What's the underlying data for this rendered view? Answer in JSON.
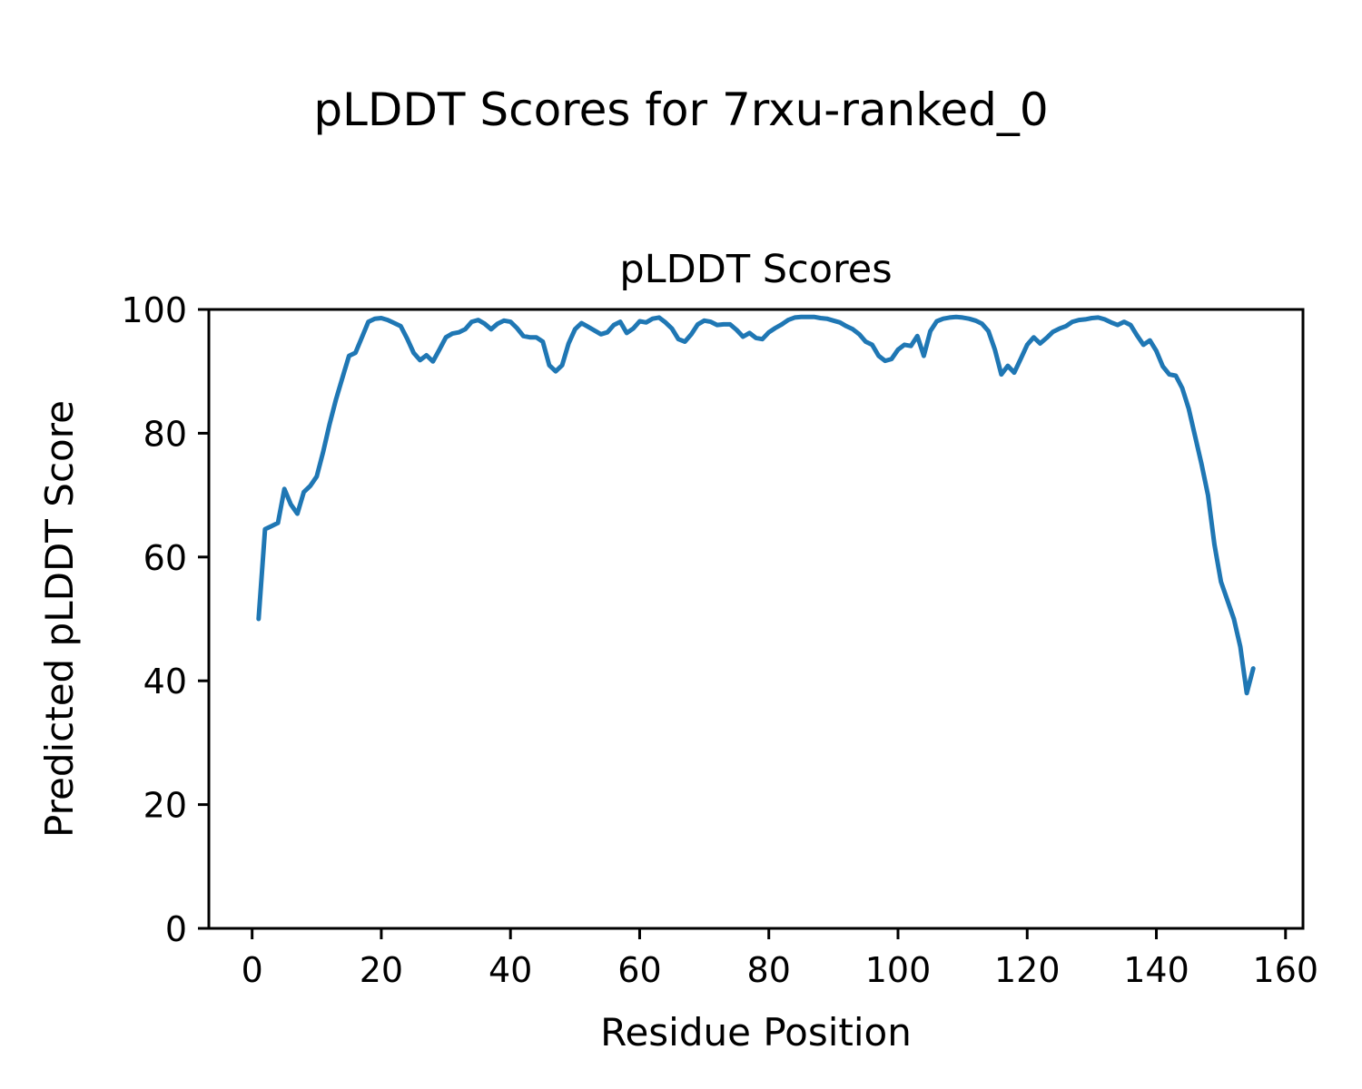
{
  "figure": {
    "suptitle": "pLDDT Scores for 7rxu-ranked_0",
    "background": "#ffffff"
  },
  "chart_data": {
    "type": "line",
    "title": "pLDDT Scores",
    "xlabel": "Residue Position",
    "ylabel": "Predicted pLDDT Score",
    "line_color": "#1f77b4",
    "line_width": 5,
    "grid": false,
    "legend": null,
    "xlim": [
      -6.7,
      162.7
    ],
    "ylim": [
      0,
      100
    ],
    "xticks": [
      0,
      20,
      40,
      60,
      80,
      100,
      120,
      140,
      160
    ],
    "yticks": [
      0,
      20,
      40,
      60,
      80,
      100
    ],
    "x": [
      1,
      2,
      3,
      4,
      5,
      6,
      7,
      8,
      9,
      10,
      11,
      12,
      13,
      14,
      15,
      16,
      17,
      18,
      19,
      20,
      21,
      22,
      23,
      24,
      25,
      26,
      27,
      28,
      29,
      30,
      31,
      32,
      33,
      34,
      35,
      36,
      37,
      38,
      39,
      40,
      41,
      42,
      43,
      44,
      45,
      46,
      47,
      48,
      49,
      50,
      51,
      52,
      53,
      54,
      55,
      56,
      57,
      58,
      59,
      60,
      61,
      62,
      63,
      64,
      65,
      66,
      67,
      68,
      69,
      70,
      71,
      72,
      73,
      74,
      75,
      76,
      77,
      78,
      79,
      80,
      81,
      82,
      83,
      84,
      85,
      86,
      87,
      88,
      89,
      90,
      91,
      92,
      93,
      94,
      95,
      96,
      97,
      98,
      99,
      100,
      101,
      102,
      103,
      104,
      105,
      106,
      107,
      108,
      109,
      110,
      111,
      112,
      113,
      114,
      115,
      116,
      117,
      118,
      119,
      120,
      121,
      122,
      123,
      124,
      125,
      126,
      127,
      128,
      129,
      130,
      131,
      132,
      133,
      134,
      135,
      136,
      137,
      138,
      139,
      140,
      141,
      142,
      143,
      144,
      145,
      146,
      147,
      148,
      149,
      150,
      151,
      152,
      153,
      154,
      155
    ],
    "y": [
      50,
      64.5,
      65,
      65.5,
      71,
      68.5,
      67,
      70.5,
      71.5,
      73,
      77,
      81.5,
      85.5,
      89,
      92.5,
      93,
      95.5,
      98,
      98.5,
      98.6,
      98.3,
      97.8,
      97.3,
      95.3,
      93,
      91.8,
      92.6,
      91.6,
      93.5,
      95.5,
      96.1,
      96.3,
      96.8,
      98,
      98.3,
      97.7,
      96.8,
      97.7,
      98.2,
      98,
      97,
      95.7,
      95.5,
      95.5,
      94.8,
      91,
      90,
      91,
      94.5,
      96.8,
      97.8,
      97.2,
      96.6,
      96,
      96.3,
      97.5,
      98,
      96.2,
      96.9,
      98.1,
      97.9,
      98.5,
      98.7,
      97.9,
      96.9,
      95.2,
      94.8,
      96,
      97.6,
      98.2,
      98,
      97.5,
      97.6,
      97.6,
      96.7,
      95.6,
      96.2,
      95.4,
      95.2,
      96.3,
      97,
      97.6,
      98.3,
      98.7,
      98.8,
      98.8,
      98.8,
      98.6,
      98.5,
      98.2,
      97.9,
      97.3,
      96.8,
      96,
      94.8,
      94.3,
      92.5,
      91.7,
      92,
      93.5,
      94.3,
      94.1,
      95.7,
      92.5,
      96.5,
      98.1,
      98.5,
      98.7,
      98.8,
      98.7,
      98.5,
      98.2,
      97.7,
      96.5,
      93.5,
      89.5,
      90.9,
      89.8,
      92,
      94.3,
      95.5,
      94.5,
      95.4,
      96.4,
      96.9,
      97.3,
      98,
      98.3,
      98.4,
      98.6,
      98.7,
      98.4,
      97.9,
      97.5,
      98,
      97.5,
      95.8,
      94.3,
      95,
      93.3,
      90.8,
      89.5,
      89.3,
      87.3,
      84,
      79.5,
      75,
      70,
      62,
      56,
      53,
      50,
      45.5,
      38,
      42
    ]
  }
}
